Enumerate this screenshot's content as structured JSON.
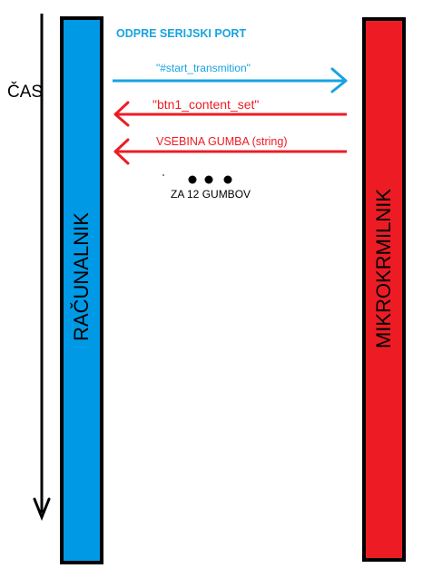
{
  "colors": {
    "pc_bar": "#0099e5",
    "mcu_bar": "#ed1c24",
    "blue_arrow": "#17a3e0",
    "red_arrow": "#ed1c24",
    "outline": "#000000"
  },
  "time_axis": {
    "label": "ČAS"
  },
  "lanes": {
    "left": {
      "label": "RAČUNALNIK"
    },
    "right": {
      "label": "MIKROKRMILNIK"
    }
  },
  "steps": {
    "open_port": "ODPRE SERIJSKI PORT",
    "messages": [
      {
        "text": "\"#start_transmition\"",
        "direction": "to-right",
        "color": "blue"
      },
      {
        "text": "\"btn1_content_set\"",
        "direction": "to-left",
        "color": "red"
      },
      {
        "text": "VSEBINA GUMBA (string)",
        "direction": "to-left",
        "color": "red"
      }
    ],
    "repeat_note": "ZA 12 GUMBOV"
  }
}
